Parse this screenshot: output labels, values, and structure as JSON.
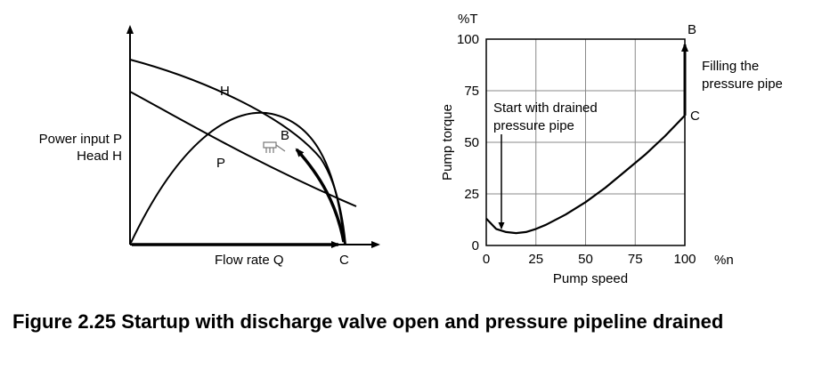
{
  "left_diagram": {
    "y_label_line1": "Power input P",
    "y_label_line2": "Head H",
    "x_label": "Flow rate Q",
    "curve_h_label": "H",
    "curve_p_label": "P",
    "point_b_label": "B",
    "point_c_label": "C"
  },
  "right_chart": {
    "y_unit": "%T",
    "y_label": "Pump torque",
    "x_label": "Pump speed",
    "x_unit": "%n",
    "point_b_label": "B",
    "point_c_label": "C",
    "annotation_start": [
      "Start with drained",
      "pressure pipe"
    ],
    "annotation_fill": [
      "Filling the",
      "pressure pipe"
    ],
    "grid": true
  },
  "chart_data": {
    "type": "line",
    "xlabel": "Pump speed",
    "ylabel": "Pump torque",
    "xlim": [
      0,
      100
    ],
    "ylim": [
      0,
      100
    ],
    "x_ticks": [
      "0",
      "25",
      "50",
      "75",
      "100"
    ],
    "y_ticks": [
      "0",
      "25",
      "50",
      "75",
      "100"
    ],
    "series": [
      {
        "x": [
          0,
          5,
          10,
          15,
          20,
          25,
          30,
          40,
          50,
          60,
          70,
          80,
          90,
          95,
          100
        ],
        "y": [
          13,
          8,
          6.5,
          6,
          6.5,
          8,
          10,
          15,
          21,
          28,
          36,
          44,
          53,
          58,
          63
        ]
      },
      {
        "x": [
          100,
          100
        ],
        "y": [
          63,
          100
        ]
      }
    ]
  },
  "caption": {
    "text": "Figure 2.25 Startup with discharge valve open and pressure pipeline drained"
  }
}
